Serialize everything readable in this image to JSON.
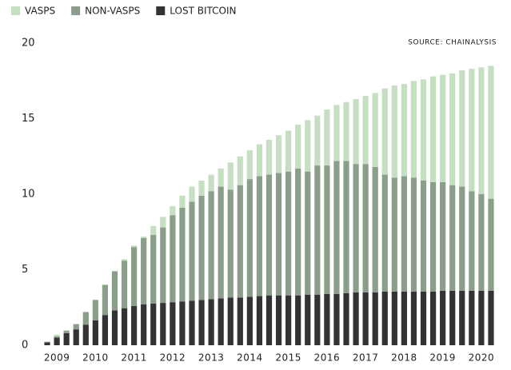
{
  "chart_data": {
    "type": "stacked_bar",
    "source": "SOURCE: CHAINALYSIS",
    "categories": [
      null,
      "2009",
      null,
      null,
      null,
      "2010",
      null,
      null,
      null,
      "2011",
      null,
      null,
      null,
      "2012",
      null,
      null,
      null,
      "2013",
      null,
      null,
      null,
      "2014",
      null,
      null,
      null,
      "2015",
      null,
      null,
      null,
      "2016",
      null,
      null,
      null,
      "2017",
      null,
      null,
      null,
      "2018",
      null,
      null,
      null,
      "2019",
      null,
      null,
      null,
      "2020",
      null
    ],
    "series": [
      {
        "name": "VASPS",
        "color": "#c6dfc3",
        "values": [
          0.05,
          0.1,
          0.05,
          0,
          0,
          0,
          0,
          0,
          0.1,
          0.1,
          0.1,
          0.6,
          0.7,
          0.6,
          0.8,
          1.0,
          1.0,
          1.1,
          1.2,
          1.8,
          1.9,
          1.9,
          2.1,
          2.3,
          2.5,
          2.7,
          2.9,
          3.4,
          3.3,
          3.7,
          3.7,
          3.9,
          4.3,
          4.5,
          4.9,
          5.7,
          6.1,
          6.1,
          6.4,
          6.7,
          7.0,
          7.1,
          7.4,
          7.7,
          8.1,
          8.4,
          8.8
        ]
      },
      {
        "name": "NON-VASPS",
        "color": "#8b9e89",
        "values": [
          0,
          0.1,
          0.15,
          0.35,
          0.85,
          1.35,
          2.0,
          2.6,
          3.15,
          3.9,
          4.4,
          4.55,
          5.0,
          5.75,
          6.2,
          6.55,
          6.9,
          7.15,
          7.4,
          7.15,
          7.45,
          7.8,
          7.95,
          8.0,
          8.1,
          8.2,
          8.4,
          8.15,
          8.55,
          8.5,
          8.8,
          8.75,
          8.5,
          8.5,
          8.3,
          7.75,
          7.55,
          7.65,
          7.55,
          7.35,
          7.25,
          7.2,
          7.0,
          6.9,
          6.6,
          6.4,
          6.1
        ]
      },
      {
        "name": "LOST BITCOIN",
        "color": "#333333",
        "values": [
          0.2,
          0.5,
          0.8,
          1.05,
          1.35,
          1.65,
          2.0,
          2.3,
          2.45,
          2.6,
          2.7,
          2.75,
          2.8,
          2.85,
          2.9,
          2.95,
          3.0,
          3.05,
          3.1,
          3.15,
          3.15,
          3.2,
          3.25,
          3.3,
          3.3,
          3.3,
          3.3,
          3.35,
          3.35,
          3.4,
          3.4,
          3.45,
          3.5,
          3.5,
          3.5,
          3.55,
          3.55,
          3.55,
          3.55,
          3.55,
          3.55,
          3.6,
          3.6,
          3.6,
          3.6,
          3.6,
          3.6
        ]
      }
    ],
    "ylim": [
      0,
      20
    ],
    "yticks": [
      0,
      5,
      10,
      15,
      20
    ],
    "legend": "top-left",
    "grid": false
  }
}
